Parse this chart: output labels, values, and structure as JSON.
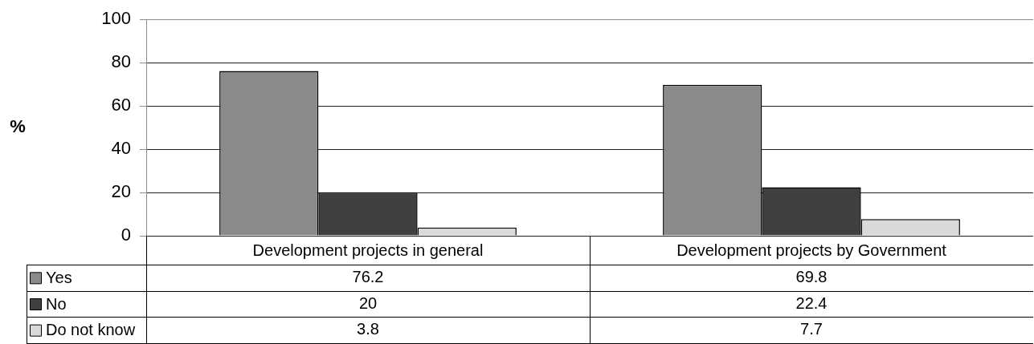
{
  "chart_data": {
    "type": "bar",
    "ylabel": "%",
    "categories": [
      "Development projects in general",
      "Development projects by Government"
    ],
    "series": [
      {
        "name": "Yes",
        "color": "#8a8a8a",
        "values": [
          76.2,
          69.8
        ]
      },
      {
        "name": "No",
        "color": "#404040",
        "values": [
          20,
          22.4
        ]
      },
      {
        "name": "Do not know",
        "color": "#d9d9d9",
        "values": [
          3.8,
          7.7
        ]
      }
    ],
    "ylim": [
      0,
      100
    ],
    "yticks": [
      0,
      20,
      40,
      60,
      80,
      100
    ],
    "grid": "y",
    "legend": "bottom left",
    "data_labels": true
  }
}
